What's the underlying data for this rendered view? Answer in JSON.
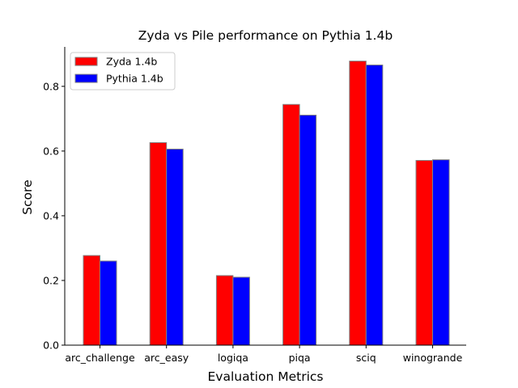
{
  "chart_data": {
    "type": "bar",
    "title": "Zyda vs Pile performance on Pythia 1.4b",
    "xlabel": "Evaluation Metrics",
    "ylabel": "Score",
    "categories": [
      "arc_challenge",
      "arc_easy",
      "logiqa",
      "piqa",
      "sciq",
      "winogrande"
    ],
    "series": [
      {
        "name": "Zyda 1.4b",
        "color": "#ff0000",
        "values": [
          0.277,
          0.626,
          0.215,
          0.744,
          0.878,
          0.571
        ]
      },
      {
        "name": "Pythia 1.4b",
        "color": "#0000ff",
        "values": [
          0.26,
          0.606,
          0.21,
          0.711,
          0.866,
          0.573
        ]
      }
    ],
    "ylim": [
      0,
      0.922
    ],
    "yticks": [
      0.0,
      0.2,
      0.4,
      0.6,
      0.8
    ],
    "ytick_labels": [
      "0.0",
      "0.2",
      "0.4",
      "0.6",
      "0.8"
    ],
    "legend_position": "upper-left",
    "grid": false
  }
}
